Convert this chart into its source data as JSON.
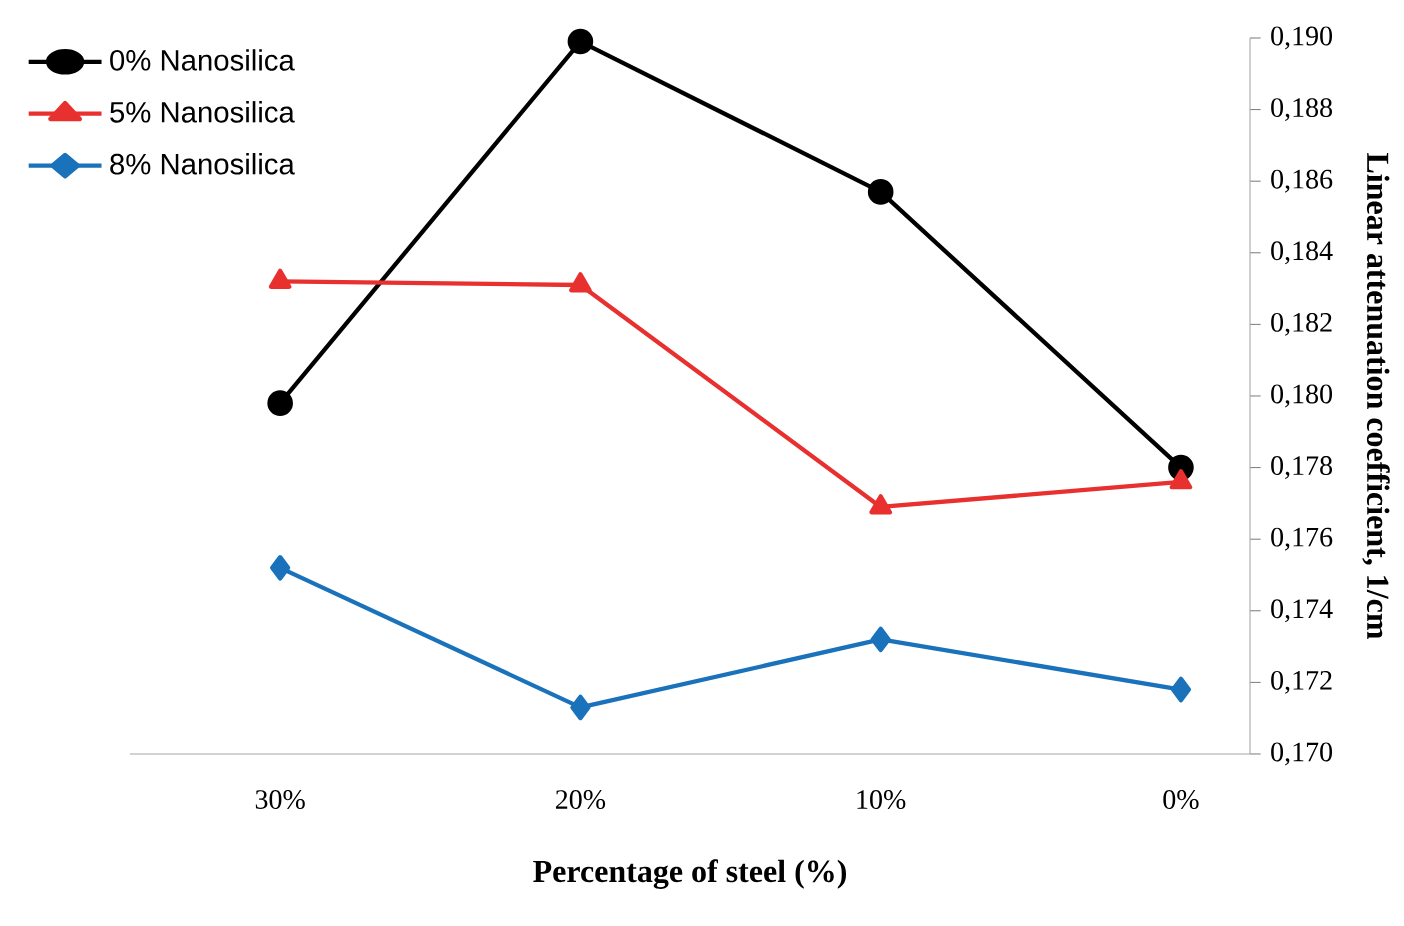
{
  "chart_data": {
    "type": "line",
    "xlabel": "Percentage of steel (%)",
    "ylabel": "Linear attenuation coefficient, 1/cm",
    "categories": [
      "30%",
      "20%",
      "10%",
      "0%"
    ],
    "series": [
      {
        "name": "0% Nanosilica",
        "color": "#000000",
        "marker": "circle",
        "values": [
          0.1798,
          0.1899,
          0.1857,
          0.178
        ]
      },
      {
        "name": "5% Nanosilica",
        "color": "#e8302f",
        "marker": "triangle",
        "values": [
          0.1832,
          0.1831,
          0.1769,
          0.1776
        ]
      },
      {
        "name": "8% Nanosilica",
        "color": "#1a72bb",
        "marker": "diamond",
        "values": [
          0.1752,
          0.1713,
          0.1732,
          0.1718
        ]
      }
    ],
    "ylim": [
      0.17,
      0.19
    ],
    "yticks": [
      {
        "value": 0.17,
        "label": "0,170"
      },
      {
        "value": 0.172,
        "label": "0,172"
      },
      {
        "value": 0.174,
        "label": "0,174"
      },
      {
        "value": 0.176,
        "label": "0,176"
      },
      {
        "value": 0.178,
        "label": "0,178"
      },
      {
        "value": 0.18,
        "label": "0,180"
      },
      {
        "value": 0.182,
        "label": "0,182"
      },
      {
        "value": 0.184,
        "label": "0,184"
      },
      {
        "value": 0.186,
        "label": "0,186"
      },
      {
        "value": 0.188,
        "label": "0,188"
      },
      {
        "value": 0.19,
        "label": "0,190"
      }
    ],
    "legend": "top left",
    "grid": false,
    "line_style": "solid"
  }
}
